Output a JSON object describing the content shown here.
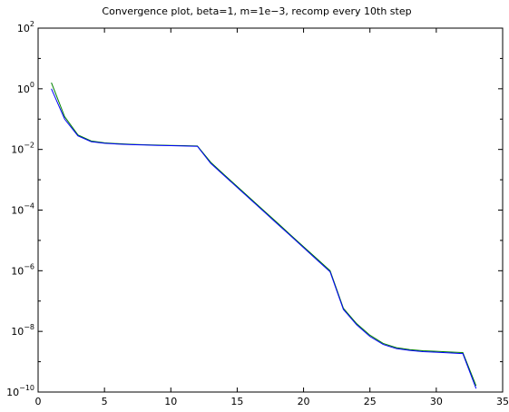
{
  "chart_data": {
    "type": "line",
    "title": "Convergence plot, beta=1, m=1e−3, recomp every 10th step",
    "xlabel": "",
    "ylabel": "",
    "xlim": [
      0,
      35
    ],
    "ylim": [
      1e-10,
      100
    ],
    "yscale": "log",
    "grid": false,
    "x_ticks": [
      "0",
      "5",
      "10",
      "15",
      "20",
      "25",
      "30",
      "35"
    ],
    "y_tick_base": "10",
    "y_tick_exponents": [
      "2",
      "0",
      "−2",
      "−4",
      "−6",
      "−8",
      "−10"
    ],
    "x": [
      1,
      2,
      3,
      4,
      5,
      6,
      7,
      8,
      9,
      10,
      11,
      12,
      13,
      14,
      15,
      16,
      17,
      18,
      19,
      20,
      21,
      22,
      23,
      24,
      25,
      26,
      27,
      28,
      29,
      30,
      31,
      32,
      33
    ],
    "series": [
      {
        "color": "#008000",
        "values": [
          1.6,
          0.12,
          0.03,
          0.019,
          0.0165,
          0.0155,
          0.0148,
          0.0143,
          0.0139,
          0.0136,
          0.0133,
          0.013,
          0.0038,
          0.0015,
          0.0006,
          0.00024,
          9.7e-05,
          3.9e-05,
          1.55e-05,
          6.2e-06,
          2.5e-06,
          1e-06,
          5.8e-08,
          1.8e-08,
          7.5e-09,
          4e-09,
          2.9e-09,
          2.5e-09,
          2.3e-09,
          2.2e-09,
          2.1e-09,
          2e-09,
          1.6e-10
        ]
      },
      {
        "color": "#0000ff",
        "values": [
          1.0,
          0.1,
          0.028,
          0.018,
          0.016,
          0.015,
          0.0144,
          0.014,
          0.0136,
          0.0133,
          0.013,
          0.0127,
          0.0035,
          0.0014,
          0.00056,
          0.000225,
          9e-05,
          3.6e-05,
          1.45e-05,
          5.8e-06,
          2.3e-06,
          9.2e-07,
          5.3e-08,
          1.65e-08,
          6.8e-09,
          3.7e-09,
          2.7e-09,
          2.35e-09,
          2.15e-09,
          2.05e-09,
          1.95e-09,
          1.85e-09,
          1.3e-10
        ]
      }
    ]
  }
}
